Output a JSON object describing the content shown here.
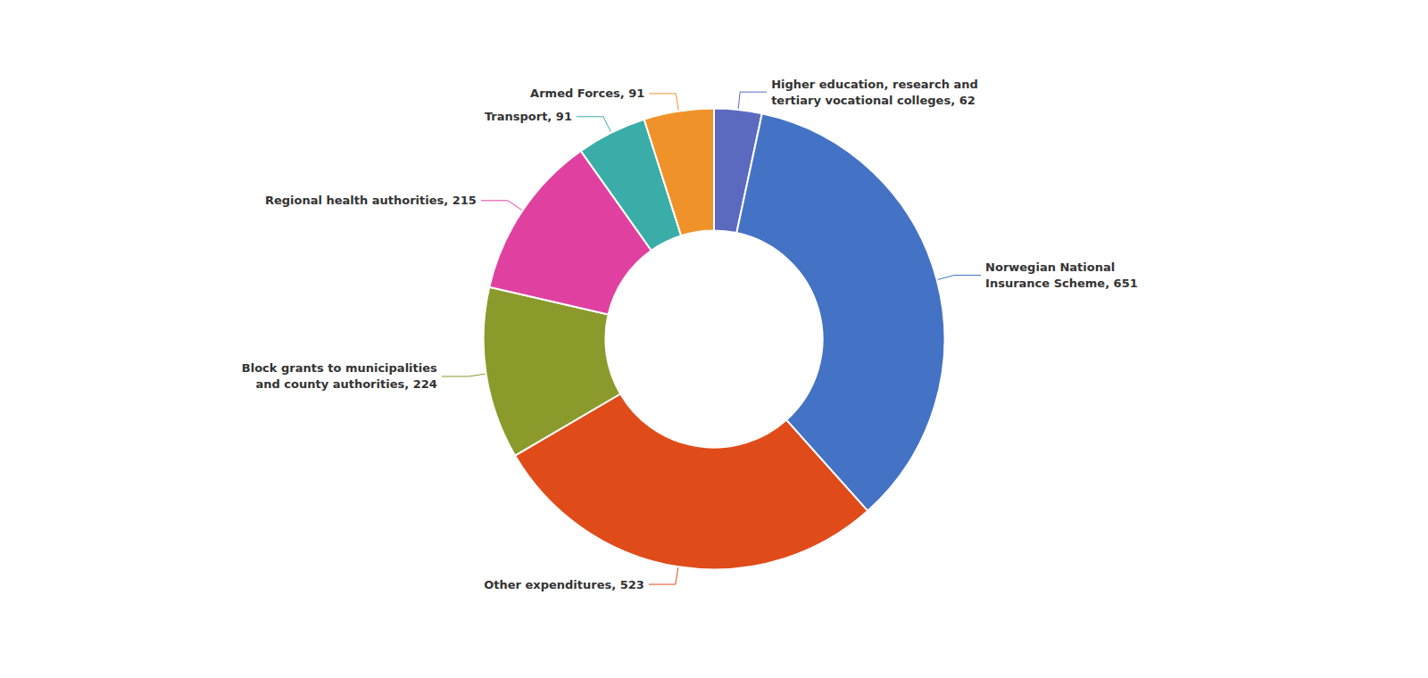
{
  "chart_data": {
    "type": "donut",
    "categories": [
      "Higher education, research and\ntertiary vocational colleges, 62",
      "Norwegian National\nInsurance Scheme, 651",
      "Other expenditures, 523",
      "Block grants to municipalities\nand county authorities, 224",
      "Regional health authorities, 215",
      "Transport, 91",
      "Armed Forces, 91"
    ],
    "values": [
      62,
      651,
      523,
      224,
      215,
      91,
      91
    ],
    "colors": [
      "#5b6abf",
      "#4472c4",
      "#e04b1a",
      "#8b9a2a",
      "#e040a0",
      "#3aada8",
      "#f0922a"
    ]
  }
}
